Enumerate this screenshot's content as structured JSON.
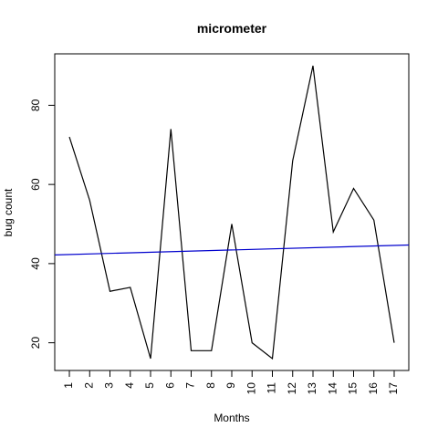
{
  "chart_data": {
    "type": "line",
    "title": "micrometer",
    "xlabel": "Months",
    "ylabel": "bug count",
    "x": [
      1,
      2,
      3,
      4,
      5,
      6,
      7,
      8,
      9,
      10,
      11,
      12,
      13,
      14,
      15,
      16,
      17
    ],
    "xticks": [
      "1",
      "2",
      "3",
      "4",
      "5",
      "6",
      "7",
      "8",
      "9",
      "10",
      "11",
      "12",
      "13",
      "14",
      "15",
      "16",
      "17"
    ],
    "yticks": [
      "20",
      "40",
      "60",
      "80"
    ],
    "ytick_values": [
      20,
      40,
      60,
      80
    ],
    "xlim": [
      0.28,
      17.72
    ],
    "ylim": [
      13.0,
      93.0
    ],
    "series": [
      {
        "values": [
          72,
          56,
          33,
          34,
          16,
          74,
          18,
          18,
          50,
          20,
          16,
          66,
          90,
          48,
          59,
          51,
          20
        ],
        "color": "#000000"
      }
    ],
    "trend_line": {
      "x": [
        0.28,
        17.72
      ],
      "y": [
        42.2,
        44.7
      ],
      "color": "#0000cd"
    },
    "grid": false,
    "legend": false,
    "x_tick_label_rotation": "vertical"
  }
}
